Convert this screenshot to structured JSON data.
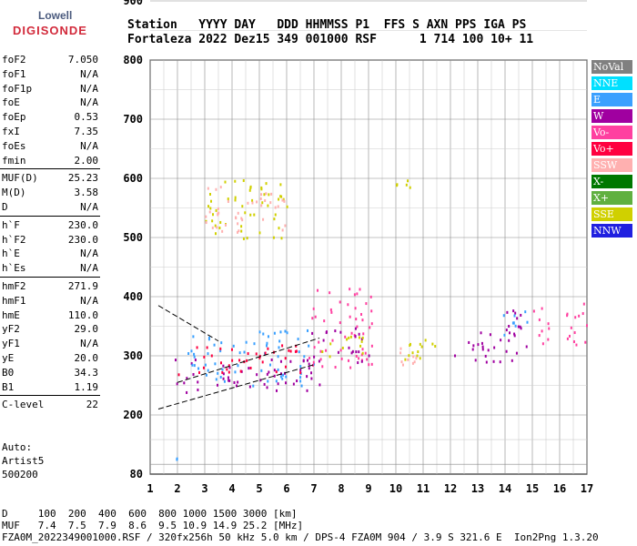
{
  "logo": {
    "line1": "Lowell",
    "line2": "DIGISONDE"
  },
  "header": {
    "line1": "Station   YYYY DAY   DDD HHMMSS P1  FFS S AXN PPS IGA PS",
    "line2": "Fortaleza 2022 Dez15 349 001000 RSF      1 714 100 10+ 11"
  },
  "params": [
    {
      "k": "foF2",
      "v": "7.050"
    },
    {
      "k": "foF1",
      "v": "N/A"
    },
    {
      "k": "foF1p",
      "v": "N/A"
    },
    {
      "k": "foE",
      "v": "N/A"
    },
    {
      "k": "foEp",
      "v": "0.53"
    },
    {
      "k": "fxI",
      "v": "7.35"
    },
    {
      "k": "foEs",
      "v": "N/A"
    },
    {
      "k": "fmin",
      "v": "2.00"
    },
    {
      "k": "MUF(D)",
      "v": "25.23"
    },
    {
      "k": "M(D)",
      "v": "3.58"
    },
    {
      "k": "D",
      "v": "N/A"
    },
    {
      "k": "h`F",
      "v": "230.0"
    },
    {
      "k": "h`F2",
      "v": "230.0"
    },
    {
      "k": "h`E",
      "v": "N/A"
    },
    {
      "k": "h`Es",
      "v": "N/A"
    },
    {
      "k": "hmF2",
      "v": "271.9"
    },
    {
      "k": "hmF1",
      "v": "N/A"
    },
    {
      "k": "hmE",
      "v": "110.0"
    },
    {
      "k": "yF2",
      "v": "29.0"
    },
    {
      "k": "yF1",
      "v": "N/A"
    },
    {
      "k": "yE",
      "v": "20.0"
    },
    {
      "k": "B0",
      "v": "34.3"
    },
    {
      "k": "B1",
      "v": "1.19"
    },
    {
      "k": "C-level",
      "v": "22"
    }
  ],
  "auto": {
    "l1": "Auto:",
    "l2": "Artist5",
    "l3": "500200"
  },
  "legend": [
    {
      "label": "NoVal",
      "color": "#808080"
    },
    {
      "label": "NNE",
      "color": "#00e0ff"
    },
    {
      "label": "E",
      "color": "#3aa0ff"
    },
    {
      "label": "W",
      "color": "#a000a0"
    },
    {
      "label": "Vo-",
      "color": "#ff40a0"
    },
    {
      "label": "Vo+",
      "color": "#ff0040"
    },
    {
      "label": "SSW",
      "color": "#ffb0b0"
    },
    {
      "label": "X-",
      "color": "#007800"
    },
    {
      "label": "X+",
      "color": "#60b040"
    },
    {
      "label": "SSE",
      "color": "#d0d000"
    },
    {
      "label": "NNW",
      "color": "#2020e0"
    }
  ],
  "footer": {
    "d_row": "D     100  200  400  600  800 1000 1500 3000 [km]",
    "muf_row": "MUF   7.4  7.5  7.9  8.6  9.5 10.9 14.9 25.2 [MHz]",
    "file_row": "FZA0M_2022349001000.RSF / 320fx256h 50 kHz 5.0 km / DPS-4 FZA0M 904 / 3.9 S 321.6 E  Ion2Png 1.3.20"
  },
  "chart_data": {
    "type": "scatter",
    "xlim": [
      1,
      17
    ],
    "ylim": [
      80,
      900
    ],
    "xticks": [
      "1",
      "2",
      "3",
      "4",
      "5",
      "6",
      "7",
      "8",
      "9",
      "10",
      "11",
      "12",
      "13",
      "14",
      "15",
      "16",
      "17"
    ],
    "yticks": [
      "80",
      "200",
      "300",
      "400",
      "500",
      "600",
      "700",
      "800",
      "900"
    ],
    "ytick_values": [
      80,
      200,
      300,
      400,
      500,
      600,
      700,
      800,
      900
    ],
    "clusters": [
      {
        "x": [
          1.9,
          7.2
        ],
        "y": [
          240,
          300
        ],
        "color": "#a000a0"
      },
      {
        "x": [
          2.5,
          7.0
        ],
        "y": [
          250,
          290
        ],
        "color": "#3aa0ff"
      },
      {
        "x": [
          2.2,
          6.8
        ],
        "y": [
          300,
          345
        ],
        "color": "#3aa0ff"
      },
      {
        "x": [
          2.0,
          6.5
        ],
        "y": [
          270,
          320
        ],
        "color": "#ff0040"
      },
      {
        "x": [
          6.8,
          9.2
        ],
        "y": [
          280,
          420
        ],
        "color": "#ff40a0"
      },
      {
        "x": [
          6.9,
          9.0
        ],
        "y": [
          290,
          350
        ],
        "color": "#a000a0"
      },
      {
        "x": [
          7.2,
          9.0
        ],
        "y": [
          300,
          340
        ],
        "color": "#d0d000"
      },
      {
        "x": [
          10.0,
          11.5
        ],
        "y": [
          290,
          340
        ],
        "color": "#d0d000"
      },
      {
        "x": [
          10.0,
          11.5
        ],
        "y": [
          285,
          320
        ],
        "color": "#ffb0b0"
      },
      {
        "x": [
          12.0,
          13.3
        ],
        "y": [
          290,
          330
        ],
        "color": "#a000a0"
      },
      {
        "x": [
          13.0,
          14.8
        ],
        "y": [
          290,
          380
        ],
        "color": "#a000a0"
      },
      {
        "x": [
          13.9,
          14.8
        ],
        "y": [
          320,
          380
        ],
        "color": "#3aa0ff"
      },
      {
        "x": [
          15.0,
          17.0
        ],
        "y": [
          320,
          390
        ],
        "color": "#ff40a0"
      },
      {
        "x": [
          3.0,
          6.0
        ],
        "y": [
          500,
          600
        ],
        "color": "#d0d000"
      },
      {
        "x": [
          3.0,
          6.0
        ],
        "y": [
          510,
          590
        ],
        "color": "#ffb0b0"
      },
      {
        "x": [
          10.0,
          11.0
        ],
        "y": [
          575,
          605
        ],
        "color": "#d0d000"
      },
      {
        "x": [
          1.9,
          2.2
        ],
        "y": [
          90,
          135
        ],
        "color": "#3aa0ff"
      }
    ],
    "trace_lower": {
      "x": [
        1.3,
        7.0
      ],
      "y": [
        210,
        285
      ]
    },
    "trace_upper": {
      "x": [
        2.0,
        7.2
      ],
      "y": [
        255,
        330
      ]
    },
    "trace_high": {
      "x": [
        1.3,
        3.5
      ],
      "y": [
        385,
        325
      ]
    }
  }
}
